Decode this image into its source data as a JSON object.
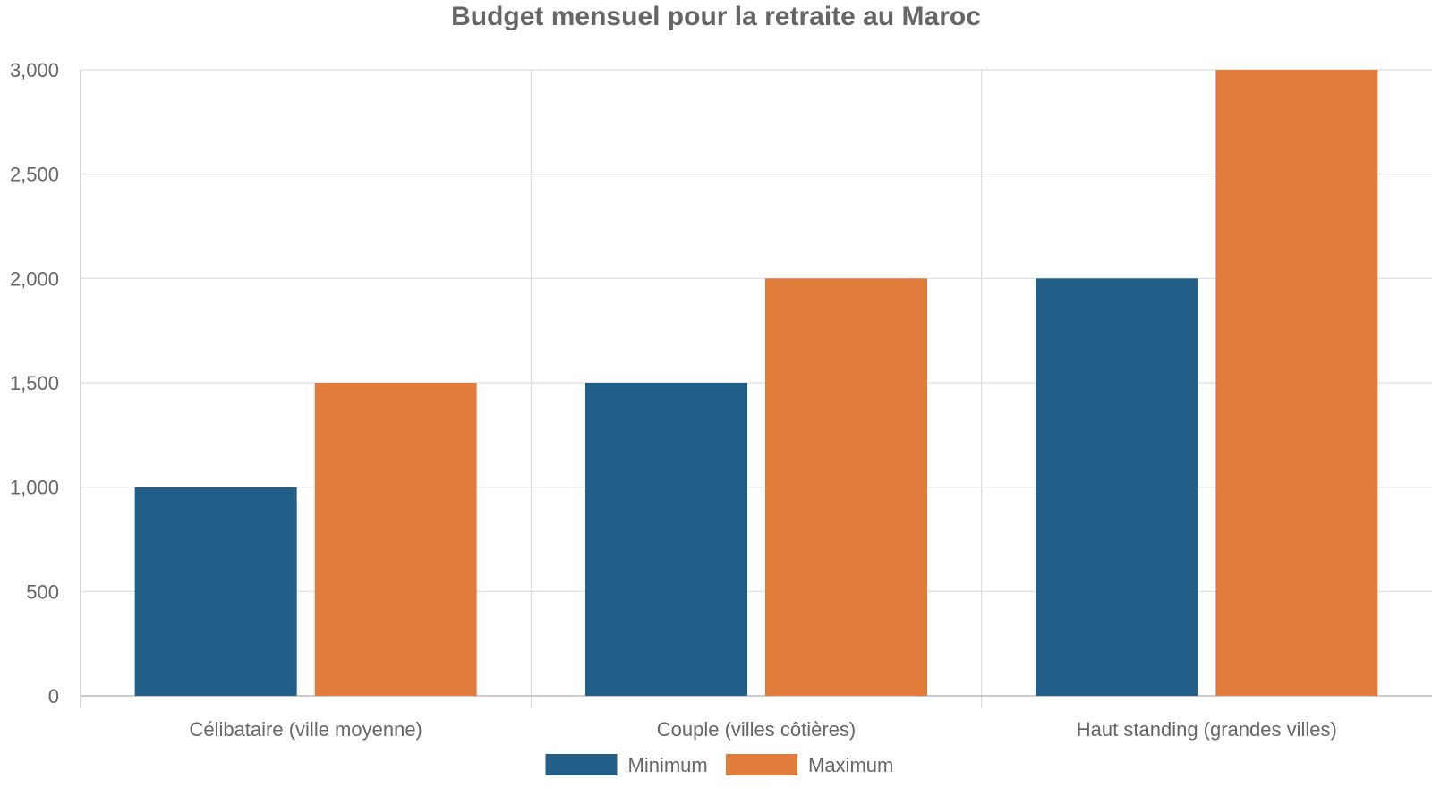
{
  "chart_data": {
    "type": "bar",
    "title": "Budget mensuel pour la retraite au Maroc",
    "categories": [
      "Célibataire (ville moyenne)",
      "Couple (villes côtières)",
      "Haut standing (grandes villes)"
    ],
    "series": [
      {
        "name": "Minimum",
        "color": "#215e88",
        "values": [
          1000,
          1500,
          2000
        ]
      },
      {
        "name": "Maximum",
        "color": "#e17c3b",
        "values": [
          1500,
          2000,
          3000
        ]
      }
    ],
    "yticks": [
      "0",
      "500",
      "1,000",
      "1,500",
      "2,000",
      "2,500",
      "3,000"
    ],
    "ytick_values": [
      0,
      500,
      1000,
      1500,
      2000,
      2500,
      3000
    ],
    "ylim": [
      0,
      3000
    ],
    "xlabel": "",
    "ylabel": "",
    "grid": true,
    "legend_position": "bottom-center"
  }
}
